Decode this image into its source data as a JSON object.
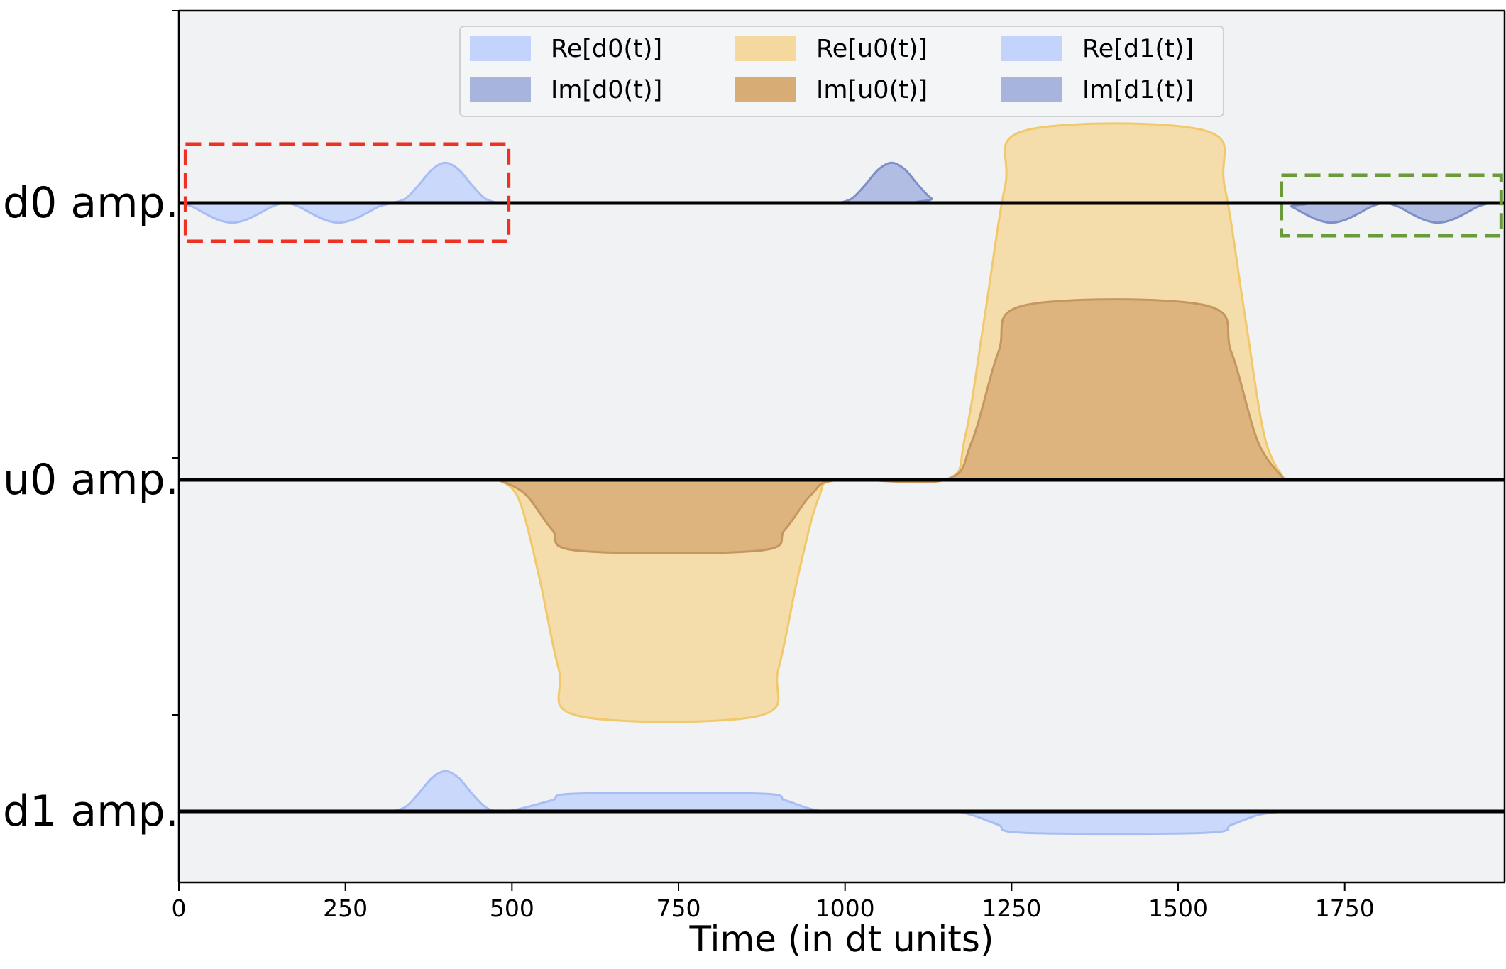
{
  "chart_data": {
    "type": "area",
    "xlabel": "Time (in dt units)",
    "xlim": [
      0,
      1990
    ],
    "x_ticks": [
      0,
      250,
      500,
      750,
      1000,
      1250,
      1500,
      1750
    ],
    "x_tick_labels": [
      "0",
      "250",
      "500",
      "750",
      "1000",
      "1250",
      "1500",
      "1750"
    ],
    "grid": false,
    "legend_position": "top-center",
    "background_color": "#f1f2f4",
    "channels": [
      {
        "name": "d0",
        "label": "d0 amp."
      },
      {
        "name": "u0",
        "label": "u0 amp."
      },
      {
        "name": "d1",
        "label": "d1 amp."
      }
    ],
    "series": [
      {
        "name": "Re[d0(t)]",
        "channel": "d0",
        "color": "#c3d3fb",
        "stroke": "#a7bdf4",
        "points": [
          [
            0,
            0
          ],
          [
            20,
            -0.08
          ],
          [
            40,
            -0.24
          ],
          [
            60,
            -0.38
          ],
          [
            80,
            -0.44
          ],
          [
            100,
            -0.38
          ],
          [
            120,
            -0.24
          ],
          [
            140,
            -0.08
          ],
          [
            160,
            0
          ],
          [
            180,
            -0.08
          ],
          [
            200,
            -0.24
          ],
          [
            220,
            -0.38
          ],
          [
            240,
            -0.44
          ],
          [
            260,
            -0.38
          ],
          [
            280,
            -0.24
          ],
          [
            300,
            -0.08
          ],
          [
            320,
            0
          ],
          [
            340,
            0.1
          ],
          [
            360,
            0.4
          ],
          [
            380,
            0.75
          ],
          [
            400,
            0.9
          ],
          [
            420,
            0.75
          ],
          [
            440,
            0.4
          ],
          [
            460,
            0.1
          ],
          [
            480,
            0
          ]
        ]
      },
      {
        "name": "Im[d0(t)]",
        "channel": "d0",
        "color": "#a6b4de",
        "stroke": "#7e8fc7",
        "points": [
          [
            990,
            0
          ],
          [
            1010,
            0.1
          ],
          [
            1030,
            0.4
          ],
          [
            1050,
            0.75
          ],
          [
            1070,
            0.9
          ],
          [
            1090,
            0.75
          ],
          [
            1110,
            0.4
          ],
          [
            1130,
            0.1
          ],
          [
            1150,
            0
          ],
          [
            1650,
            0
          ],
          [
            1670,
            -0.08
          ],
          [
            1690,
            -0.24
          ],
          [
            1710,
            -0.38
          ],
          [
            1730,
            -0.44
          ],
          [
            1750,
            -0.38
          ],
          [
            1770,
            -0.24
          ],
          [
            1790,
            -0.08
          ],
          [
            1810,
            0
          ],
          [
            1830,
            -0.08
          ],
          [
            1850,
            -0.24
          ],
          [
            1870,
            -0.38
          ],
          [
            1890,
            -0.44
          ],
          [
            1910,
            -0.38
          ],
          [
            1930,
            -0.24
          ],
          [
            1950,
            -0.08
          ],
          [
            1970,
            0
          ],
          [
            1990,
            0
          ]
        ]
      },
      {
        "name": "Re[u0(t)]",
        "channel": "u0",
        "color": "#f5d89e",
        "stroke": "#f2c86c",
        "points": [
          [
            480,
            0
          ],
          [
            510,
            -0.4
          ],
          [
            540,
            -2.0
          ],
          [
            570,
            -4.0
          ],
          [
            600,
            -5.0
          ],
          [
            870,
            -5.0
          ],
          [
            900,
            -4.0
          ],
          [
            930,
            -2.0
          ],
          [
            960,
            -0.4
          ],
          [
            990,
            0
          ],
          [
            1150,
            0
          ],
          [
            1180,
            0.9
          ],
          [
            1210,
            3.5
          ],
          [
            1240,
            6.2
          ],
          [
            1270,
            7.4
          ],
          [
            1540,
            7.4
          ],
          [
            1570,
            6.2
          ],
          [
            1600,
            3.5
          ],
          [
            1630,
            0.9
          ],
          [
            1660,
            0
          ]
        ]
      },
      {
        "name": "Im[u0(t)]",
        "channel": "u0",
        "color": "#d8ad75",
        "stroke": "#c49660",
        "points": [
          [
            480,
            0
          ],
          [
            520,
            -0.3
          ],
          [
            560,
            -1.05
          ],
          [
            600,
            -1.5
          ],
          [
            870,
            -1.5
          ],
          [
            910,
            -1.05
          ],
          [
            950,
            -0.3
          ],
          [
            990,
            0
          ],
          [
            1150,
            0
          ],
          [
            1190,
            0.8
          ],
          [
            1230,
            2.7
          ],
          [
            1270,
            3.7
          ],
          [
            1540,
            3.7
          ],
          [
            1580,
            2.7
          ],
          [
            1620,
            0.8
          ],
          [
            1660,
            0
          ]
        ]
      },
      {
        "name": "Re[d1(t)]",
        "channel": "d1",
        "color": "#c3d3fb",
        "stroke": "#a7bdf4",
        "points": [
          [
            320,
            0
          ],
          [
            340,
            0.1
          ],
          [
            360,
            0.4
          ],
          [
            380,
            0.75
          ],
          [
            400,
            0.9
          ],
          [
            420,
            0.75
          ],
          [
            440,
            0.4
          ],
          [
            460,
            0.1
          ],
          [
            480,
            0
          ],
          [
            510,
            0.05
          ],
          [
            560,
            0.25
          ],
          [
            600,
            0.4
          ],
          [
            870,
            0.4
          ],
          [
            910,
            0.25
          ],
          [
            950,
            0.05
          ],
          [
            990,
            0
          ],
          [
            1150,
            0
          ],
          [
            1190,
            -0.08
          ],
          [
            1230,
            -0.3
          ],
          [
            1270,
            -0.48
          ],
          [
            1540,
            -0.48
          ],
          [
            1580,
            -0.3
          ],
          [
            1620,
            -0.08
          ],
          [
            1660,
            0
          ]
        ]
      },
      {
        "name": "Im[d1(t)]",
        "channel": "d1",
        "color": "#a6b4de",
        "stroke": "#7e8fc7",
        "points": []
      }
    ],
    "annotations": [
      {
        "type": "dashed-box",
        "color": "#ee3124",
        "channel": "d0",
        "x_range": [
          10,
          495
        ]
      },
      {
        "type": "dashed-box",
        "color": "#6b9a3a",
        "channel": "d0",
        "x_range": [
          1655,
          1985
        ]
      }
    ]
  }
}
